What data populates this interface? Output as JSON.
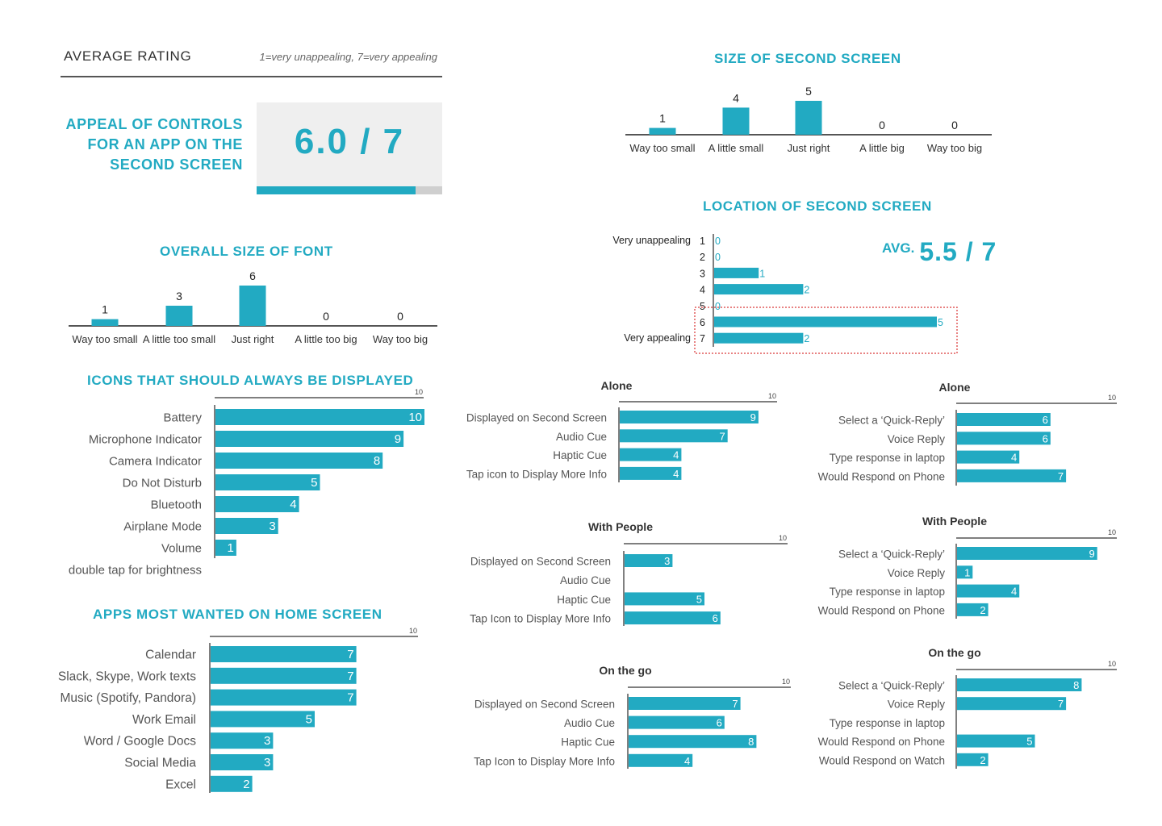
{
  "average_rating": {
    "heading": "AVERAGE RATING",
    "scale_note": "1=very unappealing, 7=very appealing",
    "appeal_title_lines": [
      "APPEAL OF CONTROLS",
      "FOR AN APP ON THE",
      "SECOND SCREEN"
    ],
    "score_text": "6.0 / 7",
    "score_value": 6.0,
    "score_max": 7
  },
  "location_avg": {
    "label": "AVG.",
    "value_text": "5.5 / 7"
  },
  "colors": {
    "accent": "#22aac2",
    "axis": "#555555",
    "box": "#efefef",
    "highlight": "#e05a5a"
  },
  "chart_data": [
    {
      "id": "font-size",
      "type": "bar",
      "title": "OVERALL SIZE OF FONT",
      "categories": [
        "Way too small",
        "A little too small",
        "Just right",
        "A little too big",
        "Way too big"
      ],
      "values": [
        1,
        3,
        6,
        0,
        0
      ],
      "ylim": [
        0,
        6
      ]
    },
    {
      "id": "second-screen-size",
      "type": "bar",
      "title": "SIZE OF SECOND SCREEN",
      "categories": [
        "Way too small",
        "A little small",
        "Just right",
        "A little big",
        "Way too big"
      ],
      "values": [
        1,
        4,
        5,
        0,
        0
      ],
      "ylim": [
        0,
        5
      ]
    },
    {
      "id": "location",
      "type": "bar",
      "orientation": "horizontal",
      "title": "LOCATION OF SECOND SCREEN",
      "categories": [
        "1",
        "2",
        "3",
        "4",
        "5",
        "6",
        "7"
      ],
      "category_notes": {
        "1": "Very unappealing",
        "7": "Very appealing"
      },
      "values": [
        0,
        0,
        1,
        2,
        0,
        5,
        2
      ],
      "xlim": [
        0,
        5
      ],
      "highlighted": [
        "5",
        "6",
        "7"
      ]
    },
    {
      "id": "icons",
      "type": "bar",
      "orientation": "horizontal",
      "title": "ICONS THAT SHOULD ALWAYS BE DISPLAYED",
      "categories": [
        "Battery",
        "Microphone Indicator",
        "Camera Indicator",
        "Do Not Disturb",
        "Bluetooth",
        "Airplane Mode",
        "Volume",
        "double tap for brightness"
      ],
      "values": [
        10,
        9,
        8,
        5,
        4,
        3,
        1,
        null
      ],
      "xlim": [
        0,
        10
      ],
      "axis_max_label": "10"
    },
    {
      "id": "apps",
      "type": "bar",
      "orientation": "horizontal",
      "title": "APPS MOST WANTED ON HOME SCREEN",
      "categories": [
        "Calendar",
        "Slack, Skype, Work texts",
        "Music (Spotify, Pandora)",
        "Work Email",
        "Word / Google Docs",
        "Social Media",
        "Excel"
      ],
      "values": [
        7,
        7,
        7,
        5,
        3,
        3,
        2
      ],
      "xlim": [
        0,
        10
      ],
      "axis_max_label": "10"
    },
    {
      "id": "notif-alone",
      "type": "bar",
      "orientation": "horizontal",
      "title": "Alone",
      "categories": [
        "Displayed on Second Screen",
        "Audio Cue",
        "Haptic Cue",
        "Tap icon to Display More Info"
      ],
      "values": [
        9,
        7,
        4,
        4
      ],
      "xlim": [
        0,
        10
      ],
      "axis_max_label": "10"
    },
    {
      "id": "notif-people",
      "type": "bar",
      "orientation": "horizontal",
      "title": "With People",
      "categories": [
        "Displayed on Second Screen",
        "Audio Cue",
        "Haptic Cue",
        "Tap Icon to Display More Info"
      ],
      "values": [
        3,
        null,
        5,
        6
      ],
      "xlim": [
        0,
        10
      ],
      "axis_max_label": "10"
    },
    {
      "id": "notif-go",
      "type": "bar",
      "orientation": "horizontal",
      "title": "On the go",
      "categories": [
        "Displayed on Second Screen",
        "Audio Cue",
        "Haptic Cue",
        "Tap Icon to Display More Info"
      ],
      "values": [
        7,
        6,
        8,
        4
      ],
      "xlim": [
        0,
        10
      ],
      "axis_max_label": "10"
    },
    {
      "id": "reply-alone",
      "type": "bar",
      "orientation": "horizontal",
      "title": "Alone",
      "categories": [
        "Select a ‘Quick-Reply’",
        "Voice Reply",
        "Type response in laptop",
        "Would Respond on Phone"
      ],
      "values": [
        6,
        6,
        4,
        7
      ],
      "xlim": [
        0,
        10
      ],
      "axis_max_label": "10"
    },
    {
      "id": "reply-people",
      "type": "bar",
      "orientation": "horizontal",
      "title": "With People",
      "categories": [
        "Select a ‘Quick-Reply’",
        "Voice Reply",
        "Type response in laptop",
        "Would Respond on Phone"
      ],
      "values": [
        9,
        1,
        4,
        2
      ],
      "xlim": [
        0,
        10
      ],
      "axis_max_label": "10"
    },
    {
      "id": "reply-go",
      "type": "bar",
      "orientation": "horizontal",
      "title": "On the go",
      "categories": [
        "Select a ‘Quick-Reply’",
        "Voice Reply",
        "Type response in laptop",
        "Would Respond on Phone",
        "Would Respond on Watch"
      ],
      "values": [
        8,
        7,
        null,
        5,
        2
      ],
      "xlim": [
        0,
        10
      ],
      "axis_max_label": "10"
    }
  ]
}
